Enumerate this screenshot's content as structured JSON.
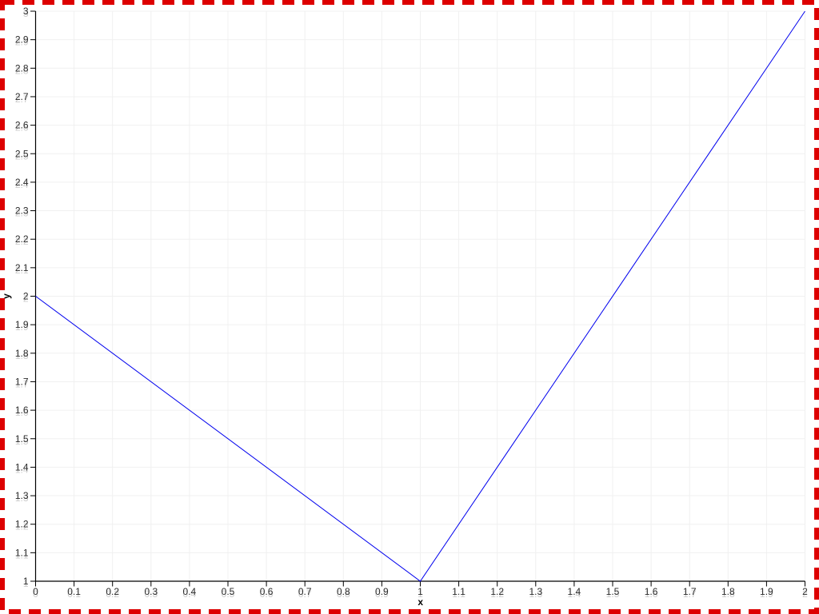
{
  "chart_data": {
    "type": "line",
    "title": "",
    "xlabel": "x",
    "ylabel": "y",
    "x": [
      0,
      1,
      2
    ],
    "y": [
      2,
      1,
      3
    ],
    "series": [
      {
        "name": "",
        "x": [
          0,
          1,
          2
        ],
        "y": [
          2,
          1,
          3
        ]
      }
    ],
    "xlim": [
      0,
      2
    ],
    "ylim": [
      1,
      3
    ],
    "xtick_step": 0.1,
    "ytick_step": 0.1,
    "xticks": [
      0,
      0.1,
      0.2,
      0.3,
      0.4,
      0.5,
      0.6,
      0.7,
      0.8,
      0.9,
      1,
      1.1,
      1.2,
      1.3,
      1.4,
      1.5,
      1.6,
      1.7,
      1.8,
      1.9,
      2
    ],
    "yticks": [
      1,
      1.1,
      1.2,
      1.3,
      1.4,
      1.5,
      1.6,
      1.7,
      1.8,
      1.9,
      2,
      2.1,
      2.2,
      2.3,
      2.4,
      2.5,
      2.6,
      2.7,
      2.8,
      2.9,
      3
    ],
    "grid": true,
    "legend": false,
    "colors": {
      "line": "#0000ee",
      "axis": "#000000",
      "grid": "#f0f0f0",
      "tick_label": "#2b2b2b",
      "tick_label_shadow": "#cccccc",
      "frame_border": "#dd0000",
      "background": "#ffffff"
    }
  }
}
